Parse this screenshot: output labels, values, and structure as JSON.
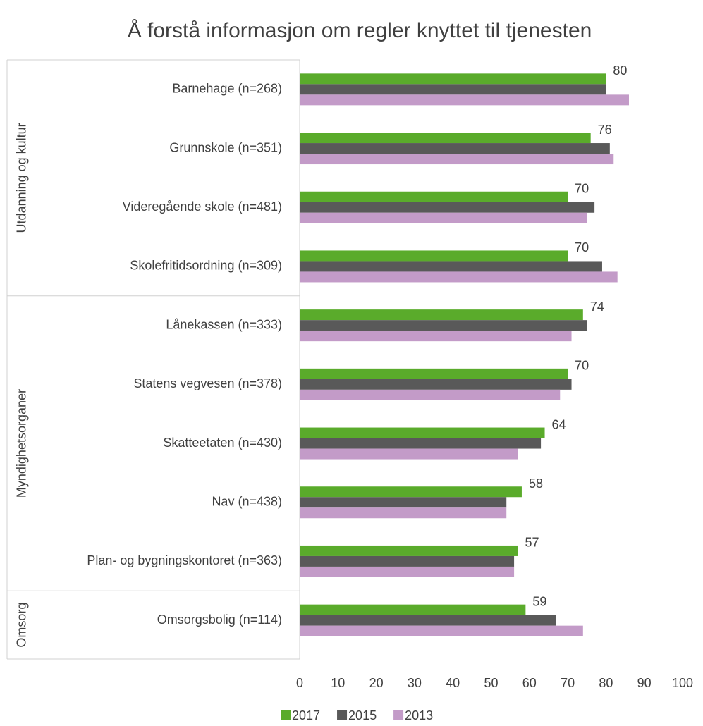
{
  "chart_data": {
    "type": "bar",
    "orientation": "horizontal",
    "title": "Å forstå informasjon om regler knyttet til tjenesten",
    "groups": [
      {
        "name": "Utdanning og kultur",
        "categories": [
          "Barnehage (n=268)",
          "Grunnskole (n=351)",
          "Videregående skole (n=481)",
          "Skolefritidsordning (n=309)"
        ]
      },
      {
        "name": "Myndighetsorganer",
        "categories": [
          "Lånekassen (n=333)",
          "Statens vegvesen (n=378)",
          "Skatteetaten (n=430)",
          "Nav (n=438)",
          "Plan- og bygningskontoret (n=363)"
        ]
      },
      {
        "name": "Omsorg",
        "categories": [
          "Omsorgsbolig (n=114)"
        ]
      }
    ],
    "series": [
      {
        "name": "2017",
        "color": "#5aab2b",
        "labels": true,
        "values": [
          80,
          76,
          70,
          70,
          74,
          70,
          64,
          58,
          57,
          59
        ]
      },
      {
        "name": "2015",
        "color": "#595959",
        "labels": false,
        "values": [
          80,
          81,
          77,
          79,
          75,
          71,
          63,
          54,
          56,
          67
        ]
      },
      {
        "name": "2013",
        "color": "#c39bc8",
        "labels": false,
        "values": [
          86,
          82,
          75,
          83,
          71,
          68,
          57,
          54,
          56,
          74
        ]
      }
    ],
    "xlim": [
      0,
      100
    ],
    "xticks": [
      0,
      10,
      20,
      30,
      40,
      50,
      60,
      70,
      80,
      90,
      100
    ],
    "legend": "bottom"
  }
}
